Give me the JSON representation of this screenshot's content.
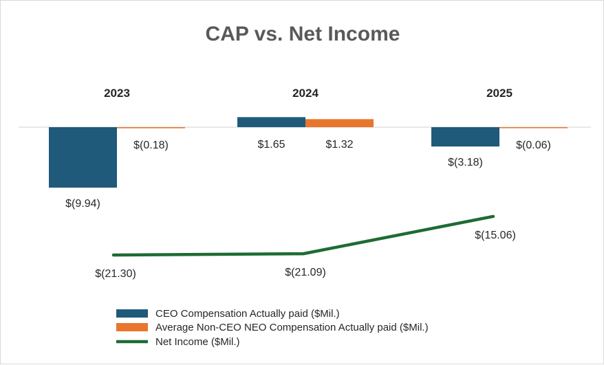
{
  "chart_data": {
    "type": "bar",
    "title": "CAP vs. Net Income",
    "categories": [
      "2023",
      "2024",
      "2025"
    ],
    "series": [
      {
        "name": "CEO Compensation Actually paid ($Mil.)",
        "kind": "bar",
        "color": "#1f5a7a",
        "values": [
          -9.94,
          1.65,
          -3.18
        ],
        "labels": [
          "$(9.94)",
          "$1.65",
          "$(3.18)"
        ]
      },
      {
        "name": "Average Non-CEO NEO Compensation Actually paid ($Mil.)",
        "kind": "bar",
        "color": "#e8762c",
        "values": [
          -0.18,
          1.32,
          -0.06
        ],
        "labels": [
          "$(0.18)",
          "$1.32",
          "$(0.06)"
        ]
      },
      {
        "name": "Net Income ($Mil.)",
        "kind": "line",
        "color": "#1e6b34",
        "values": [
          -21.3,
          -21.09,
          -15.06
        ],
        "labels": [
          "$(21.30)",
          "$(21.09)",
          "$(15.06)"
        ]
      }
    ],
    "legend_position": "bottom",
    "grid": false,
    "ylim": [
      -10.5,
      2.0
    ]
  }
}
